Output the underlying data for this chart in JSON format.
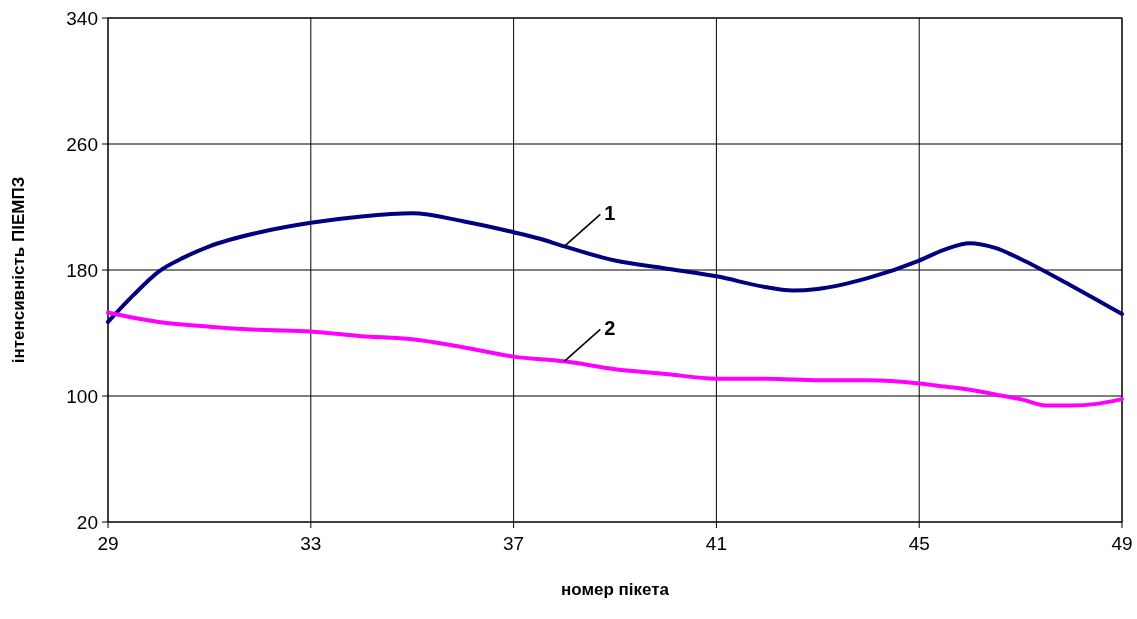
{
  "chart_data": {
    "type": "line",
    "xlabel": "номер пікета",
    "ylabel": "інтенсивність ПІЕМПЗ",
    "xlim": [
      29,
      49
    ],
    "xticks": [
      29,
      33,
      37,
      41,
      45,
      49
    ],
    "ylim": [
      20,
      340
    ],
    "yticks": [
      20,
      100,
      180,
      260,
      340
    ],
    "grid": true,
    "legend": false,
    "marker": "none",
    "line_style": "solid",
    "series": [
      {
        "name": "1",
        "color": "#000080",
        "x": [
          29,
          29.5,
          30,
          30.5,
          31,
          32,
          33,
          34,
          35,
          36,
          37,
          37.5,
          38,
          39,
          40,
          41,
          42,
          42.5,
          43,
          44,
          45,
          45.5,
          46,
          46.5,
          47,
          48,
          49
        ],
        "values": [
          147,
          164,
          179,
          188,
          195,
          204,
          210,
          214,
          216,
          211,
          204,
          200,
          195,
          186,
          181,
          176,
          169,
          167,
          168,
          175,
          186,
          193,
          197,
          194,
          187,
          170,
          152
        ]
      },
      {
        "name": "2",
        "color": "#ff00ff",
        "x": [
          29,
          30,
          31,
          32,
          33,
          34,
          35,
          36,
          37,
          38,
          39,
          40,
          41,
          42,
          43,
          44,
          45,
          45.5,
          46,
          46.5,
          47,
          47.5,
          48,
          48.5,
          49
        ],
        "values": [
          153,
          147,
          144,
          142,
          141,
          138,
          136,
          131,
          125,
          122,
          117,
          114,
          111,
          111,
          110,
          110,
          108,
          106,
          104,
          101,
          98,
          94,
          94,
          95,
          98
        ]
      }
    ]
  }
}
